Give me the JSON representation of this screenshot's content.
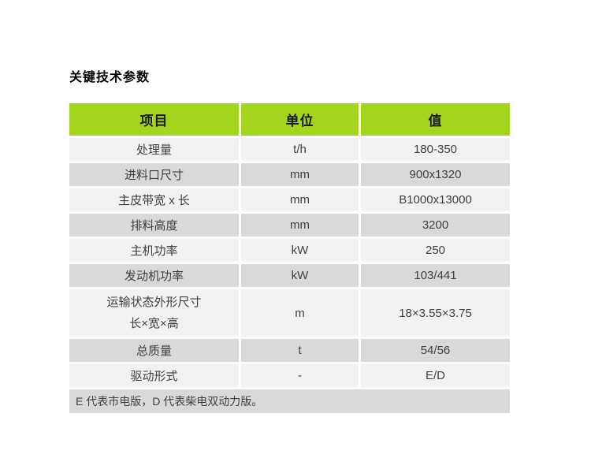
{
  "page": {
    "title": "关键技术参数"
  },
  "colors": {
    "header_bg": "#A4D51E",
    "row_light": "#F2F2F2",
    "row_dark": "#D9D9D9",
    "header_text": "#1A1A1A",
    "body_text": "#3F3F3F",
    "page_bg": "#FFFFFF"
  },
  "table": {
    "headers": {
      "item": "项目",
      "unit": "单位",
      "value": "值"
    },
    "rows": [
      {
        "item": "处理量",
        "unit": "t/h",
        "value": "180-350"
      },
      {
        "item": "进料口尺寸",
        "unit": "mm",
        "value": "900x1320"
      },
      {
        "item": "主皮带宽 x 长",
        "unit": "mm",
        "value": "B1000x13000"
      },
      {
        "item": "排料高度",
        "unit": "mm",
        "value": "3200"
      },
      {
        "item": "主机功率",
        "unit": "kW",
        "value": "250"
      },
      {
        "item": "发动机功率",
        "unit": "kW",
        "value": "103/441"
      },
      {
        "item": "运输状态外形尺寸",
        "item2": "长×宽×高",
        "unit": "m",
        "value": "18×3.55×3.75"
      },
      {
        "item": "总质量",
        "unit": "t",
        "value": "54/56"
      },
      {
        "item": "驱动形式",
        "unit": "-",
        "value": "E/D"
      }
    ],
    "footnote": "E 代表市电版，D 代表柴电双动力版。"
  }
}
